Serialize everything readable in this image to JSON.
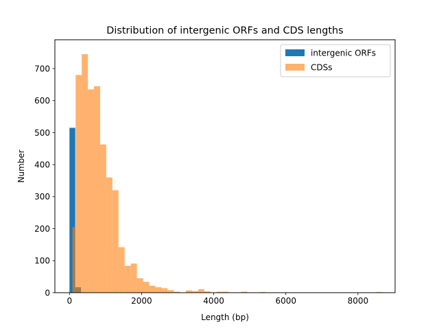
{
  "chart_data": {
    "type": "bar",
    "title": "Distribution of intergenic ORFs and CDS lengths",
    "xlabel": "Length (bp)",
    "ylabel": "Number",
    "xlim": [
      -405,
      9030
    ],
    "ylim": [
      0,
      790
    ],
    "xticks": [
      0,
      2000,
      4000,
      6000,
      8000
    ],
    "xtick_labels": [
      "0",
      "2000",
      "4000",
      "6000",
      "8000"
    ],
    "yticks": [
      0,
      100,
      200,
      300,
      400,
      500,
      600,
      700
    ],
    "ytick_labels": [
      "0",
      "100",
      "200",
      "300",
      "400",
      "500",
      "600",
      "700"
    ],
    "legend": {
      "placement": "top-right"
    },
    "grid": false,
    "series": [
      {
        "name": "intergenic ORFs",
        "color": "#1f77b4",
        "opacity": 1.0,
        "bins": [
          {
            "x0": 0,
            "x1": 80,
            "count": 515
          },
          {
            "x0": 80,
            "x1": 160,
            "count": 515
          },
          {
            "x0": 160,
            "x1": 240,
            "count": 17
          },
          {
            "x0": 240,
            "x1": 320,
            "count": 17
          }
        ]
      },
      {
        "name": "CDSs",
        "color": "#ff7f0e",
        "opacity": 0.6,
        "bins": [
          {
            "x0": 80,
            "x1": 170,
            "count": 205
          },
          {
            "x0": 170,
            "x1": 340,
            "count": 680
          },
          {
            "x0": 340,
            "x1": 510,
            "count": 745
          },
          {
            "x0": 510,
            "x1": 680,
            "count": 635
          },
          {
            "x0": 680,
            "x1": 850,
            "count": 645
          },
          {
            "x0": 850,
            "x1": 1020,
            "count": 463
          },
          {
            "x0": 1020,
            "x1": 1190,
            "count": 360
          },
          {
            "x0": 1190,
            "x1": 1360,
            "count": 320
          },
          {
            "x0": 1360,
            "x1": 1530,
            "count": 142
          },
          {
            "x0": 1530,
            "x1": 1700,
            "count": 84
          },
          {
            "x0": 1700,
            "x1": 1870,
            "count": 91
          },
          {
            "x0": 1870,
            "x1": 2040,
            "count": 45
          },
          {
            "x0": 2040,
            "x1": 2210,
            "count": 34
          },
          {
            "x0": 2210,
            "x1": 2380,
            "count": 22
          },
          {
            "x0": 2380,
            "x1": 2550,
            "count": 17
          },
          {
            "x0": 2550,
            "x1": 2720,
            "count": 14
          },
          {
            "x0": 2720,
            "x1": 2890,
            "count": 8
          },
          {
            "x0": 2890,
            "x1": 3060,
            "count": 3
          },
          {
            "x0": 3060,
            "x1": 3230,
            "count": 1
          },
          {
            "x0": 3230,
            "x1": 3400,
            "count": 7
          },
          {
            "x0": 3400,
            "x1": 3570,
            "count": 5
          },
          {
            "x0": 3570,
            "x1": 3740,
            "count": 11
          },
          {
            "x0": 3740,
            "x1": 3910,
            "count": 4
          },
          {
            "x0": 3910,
            "x1": 4080,
            "count": 1
          },
          {
            "x0": 4080,
            "x1": 4250,
            "count": 3
          },
          {
            "x0": 4250,
            "x1": 4420,
            "count": 3
          },
          {
            "x0": 4420,
            "x1": 4590,
            "count": 1
          },
          {
            "x0": 4760,
            "x1": 4930,
            "count": 3
          },
          {
            "x0": 5270,
            "x1": 5440,
            "count": 2
          },
          {
            "x0": 5950,
            "x1": 6120,
            "count": 1
          },
          {
            "x0": 8500,
            "x1": 8670,
            "count": 2
          }
        ]
      }
    ]
  }
}
